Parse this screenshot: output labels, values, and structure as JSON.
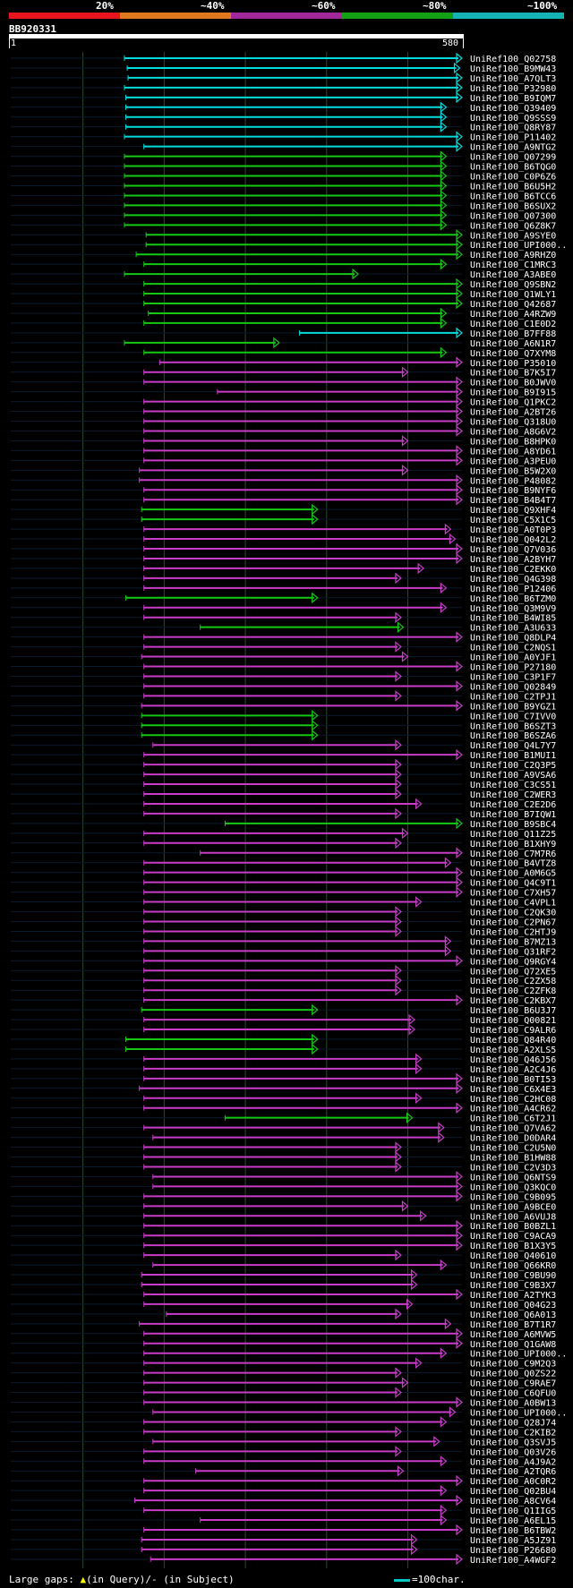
{
  "query": {
    "name": "BB920331",
    "start": "1",
    "end": "580"
  },
  "identity_scale": [
    {
      "label": "20%",
      "color": "#e8141e"
    },
    {
      "label": "~40%",
      "color": "#e0781e"
    },
    {
      "label": "~60%",
      "color": "#a0289a"
    },
    {
      "label": "~80%",
      "color": "#14a014"
    },
    {
      "label": "~100%",
      "color": "#14b4b4"
    }
  ],
  "colors": {
    "cyan": "#00dcdc",
    "green": "#14c814",
    "magenta": "#c83cc8",
    "grid": "#2a4a2a",
    "background": "#000000"
  },
  "footer": {
    "gaps_label": "Large gaps:",
    "gap_query": "(in Query)/",
    "gap_subject": "- (in Subject)",
    "key_label": "=100char."
  },
  "hits": [
    {
      "name": "UniRef100_Q02758",
      "cls": "cyan",
      "s": 0.252,
      "e": 1.0
    },
    {
      "name": "UniRef100_B9MW43",
      "cls": "cyan",
      "s": 0.258,
      "e": 0.995
    },
    {
      "name": "UniRef100_A7QLT3",
      "cls": "cyan",
      "s": 0.26,
      "e": 1.0
    },
    {
      "name": "UniRef100_P32980",
      "cls": "cyan",
      "s": 0.252,
      "e": 1.0
    },
    {
      "name": "UniRef100_B9IQM7",
      "cls": "cyan",
      "s": 0.255,
      "e": 1.0
    },
    {
      "name": "UniRef100_Q39409",
      "cls": "cyan",
      "s": 0.255,
      "e": 0.965
    },
    {
      "name": "UniRef100_Q9SSS9",
      "cls": "cyan",
      "s": 0.255,
      "e": 0.965
    },
    {
      "name": "UniRef100_Q8RY87",
      "cls": "cyan",
      "s": 0.255,
      "e": 0.965
    },
    {
      "name": "UniRef100_P11402",
      "cls": "cyan",
      "s": 0.252,
      "e": 1.0
    },
    {
      "name": "UniRef100_A9NTG2",
      "cls": "cyan",
      "s": 0.295,
      "e": 1.0
    },
    {
      "name": "UniRef100_Q07299",
      "cls": "green",
      "s": 0.252,
      "e": 0.965
    },
    {
      "name": "UniRef100_B6TQG0",
      "cls": "green",
      "s": 0.252,
      "e": 0.965
    },
    {
      "name": "UniRef100_C0P6Z6",
      "cls": "green",
      "s": 0.252,
      "e": 0.965
    },
    {
      "name": "UniRef100_B6U5H2",
      "cls": "green",
      "s": 0.252,
      "e": 0.965
    },
    {
      "name": "UniRef100_B6TCC6",
      "cls": "green",
      "s": 0.252,
      "e": 0.965
    },
    {
      "name": "UniRef100_B6SUX2",
      "cls": "green",
      "s": 0.252,
      "e": 0.965
    },
    {
      "name": "UniRef100_Q07300",
      "cls": "green",
      "s": 0.252,
      "e": 0.965
    },
    {
      "name": "UniRef100_Q6Z8K7",
      "cls": "green",
      "s": 0.252,
      "e": 0.965
    },
    {
      "name": "UniRef100_A9SYE0",
      "cls": "green",
      "s": 0.3,
      "e": 1.0
    },
    {
      "name": "UniRef100_UPI000..",
      "cls": "green",
      "s": 0.3,
      "e": 1.0
    },
    {
      "name": "UniRef100_A9RHZ0",
      "cls": "green",
      "s": 0.278,
      "e": 1.0
    },
    {
      "name": "UniRef100_C1MRC3",
      "cls": "green",
      "s": 0.295,
      "e": 0.965
    },
    {
      "name": "UniRef100_A3ABE0",
      "cls": "green",
      "s": 0.252,
      "e": 0.77
    },
    {
      "name": "UniRef100_Q9SBN2",
      "cls": "green",
      "s": 0.295,
      "e": 1.0
    },
    {
      "name": "UniRef100_Q1WLY1",
      "cls": "green",
      "s": 0.295,
      "e": 1.0
    },
    {
      "name": "UniRef100_Q42687",
      "cls": "green",
      "s": 0.295,
      "e": 1.0
    },
    {
      "name": "UniRef100_A4RZW9",
      "cls": "green",
      "s": 0.305,
      "e": 0.965
    },
    {
      "name": "UniRef100_C1E0D2",
      "cls": "green",
      "s": 0.295,
      "e": 0.965
    },
    {
      "name": "UniRef100_B7FF88",
      "cls": "cyan",
      "s": 0.64,
      "e": 1.0
    },
    {
      "name": "UniRef100_A6N1R7",
      "cls": "green",
      "s": 0.252,
      "e": 0.595
    },
    {
      "name": "UniRef100_Q7XYM8",
      "cls": "green",
      "s": 0.295,
      "e": 0.965
    },
    {
      "name": "UniRef100_P35010",
      "cls": "magenta",
      "s": 0.33,
      "e": 1.0
    },
    {
      "name": "UniRef100_B7K5I7",
      "cls": "magenta",
      "s": 0.295,
      "e": 0.88
    },
    {
      "name": "UniRef100_B0JWV0",
      "cls": "magenta",
      "s": 0.295,
      "e": 1.0
    },
    {
      "name": "UniRef100_B9I915",
      "cls": "magenta",
      "s": 0.458,
      "e": 1.0
    },
    {
      "name": "UniRef100_Q1PKC2",
      "cls": "magenta",
      "s": 0.295,
      "e": 1.0
    },
    {
      "name": "UniRef100_A2BT26",
      "cls": "magenta",
      "s": 0.295,
      "e": 1.0
    },
    {
      "name": "UniRef100_Q318U0",
      "cls": "magenta",
      "s": 0.295,
      "e": 1.0
    },
    {
      "name": "UniRef100_A8G6V2",
      "cls": "magenta",
      "s": 0.295,
      "e": 1.0
    },
    {
      "name": "UniRef100_B8HPK0",
      "cls": "magenta",
      "s": 0.295,
      "e": 0.88
    },
    {
      "name": "UniRef100_A8YD61",
      "cls": "magenta",
      "s": 0.295,
      "e": 1.0
    },
    {
      "name": "UniRef100_A3PEU0",
      "cls": "magenta",
      "s": 0.295,
      "e": 1.0
    },
    {
      "name": "UniRef100_B5W2X0",
      "cls": "magenta",
      "s": 0.285,
      "e": 0.88
    },
    {
      "name": "UniRef100_P48082",
      "cls": "magenta",
      "s": 0.285,
      "e": 1.0
    },
    {
      "name": "UniRef100_B9NYF6",
      "cls": "magenta",
      "s": 0.295,
      "e": 1.0
    },
    {
      "name": "UniRef100_B4B4T7",
      "cls": "magenta",
      "s": 0.295,
      "e": 1.0
    },
    {
      "name": "UniRef100_Q9XHF4",
      "cls": "green",
      "s": 0.29,
      "e": 0.68
    },
    {
      "name": "UniRef100_C5X1C5",
      "cls": "green",
      "s": 0.29,
      "e": 0.68
    },
    {
      "name": "UniRef100_A0T0P3",
      "cls": "magenta",
      "s": 0.295,
      "e": 0.975
    },
    {
      "name": "UniRef100_Q042L2",
      "cls": "magenta",
      "s": 0.295,
      "e": 0.985
    },
    {
      "name": "UniRef100_Q7V036",
      "cls": "magenta",
      "s": 0.295,
      "e": 1.0
    },
    {
      "name": "UniRef100_A2BYH7",
      "cls": "magenta",
      "s": 0.295,
      "e": 1.0
    },
    {
      "name": "UniRef100_C2EKK0",
      "cls": "magenta",
      "s": 0.295,
      "e": 0.915
    },
    {
      "name": "UniRef100_Q4G398",
      "cls": "magenta",
      "s": 0.295,
      "e": 0.865
    },
    {
      "name": "UniRef100_P12406",
      "cls": "magenta",
      "s": 0.295,
      "e": 0.965
    },
    {
      "name": "UniRef100_B6TZM0",
      "cls": "green",
      "s": 0.255,
      "e": 0.68
    },
    {
      "name": "UniRef100_Q3M9V9",
      "cls": "magenta",
      "s": 0.295,
      "e": 0.965
    },
    {
      "name": "UniRef100_B4WI85",
      "cls": "magenta",
      "s": 0.295,
      "e": 0.865
    },
    {
      "name": "UniRef100_A3U633",
      "cls": "green",
      "s": 0.42,
      "e": 0.87
    },
    {
      "name": "UniRef100_Q8DLP4",
      "cls": "magenta",
      "s": 0.295,
      "e": 1.0
    },
    {
      "name": "UniRef100_C2NQS1",
      "cls": "magenta",
      "s": 0.295,
      "e": 0.865
    },
    {
      "name": "UniRef100_A0YJF1",
      "cls": "magenta",
      "s": 0.29,
      "e": 0.88
    },
    {
      "name": "UniRef100_P27180",
      "cls": "magenta",
      "s": 0.295,
      "e": 1.0
    },
    {
      "name": "UniRef100_C3P1F7",
      "cls": "magenta",
      "s": 0.295,
      "e": 0.865
    },
    {
      "name": "UniRef100_Q02849",
      "cls": "magenta",
      "s": 0.295,
      "e": 1.0
    },
    {
      "name": "UniRef100_C2TPJ1",
      "cls": "magenta",
      "s": 0.295,
      "e": 0.865
    },
    {
      "name": "UniRef100_B9YGZ1",
      "cls": "magenta",
      "s": 0.29,
      "e": 1.0
    },
    {
      "name": "UniRef100_C7IVV0",
      "cls": "green",
      "s": 0.29,
      "e": 0.68
    },
    {
      "name": "UniRef100_B6SZT3",
      "cls": "green",
      "s": 0.29,
      "e": 0.68
    },
    {
      "name": "UniRef100_B6SZA6",
      "cls": "green",
      "s": 0.29,
      "e": 0.68
    },
    {
      "name": "UniRef100_Q4L7Y7",
      "cls": "magenta",
      "s": 0.315,
      "e": 0.865
    },
    {
      "name": "UniRef100_B1MUI1",
      "cls": "magenta",
      "s": 0.295,
      "e": 1.0
    },
    {
      "name": "UniRef100_C2Q3P5",
      "cls": "magenta",
      "s": 0.295,
      "e": 0.865
    },
    {
      "name": "UniRef100_A9VSA6",
      "cls": "magenta",
      "s": 0.295,
      "e": 0.865
    },
    {
      "name": "UniRef100_C3CS51",
      "cls": "magenta",
      "s": 0.295,
      "e": 0.865
    },
    {
      "name": "UniRef100_C2WER3",
      "cls": "magenta",
      "s": 0.295,
      "e": 0.865
    },
    {
      "name": "UniRef100_C2E2D6",
      "cls": "magenta",
      "s": 0.295,
      "e": 0.91
    },
    {
      "name": "UniRef100_B7IQW1",
      "cls": "magenta",
      "s": 0.295,
      "e": 0.865
    },
    {
      "name": "UniRef100_B9SBC4",
      "cls": "green",
      "s": 0.475,
      "e": 1.0
    },
    {
      "name": "UniRef100_Q11Z25",
      "cls": "magenta",
      "s": 0.295,
      "e": 0.88
    },
    {
      "name": "UniRef100_B1XHY9",
      "cls": "magenta",
      "s": 0.295,
      "e": 0.865
    },
    {
      "name": "UniRef100_C7M7R6",
      "cls": "magenta",
      "s": 0.42,
      "e": 1.0
    },
    {
      "name": "UniRef100_B4VTZ8",
      "cls": "magenta",
      "s": 0.295,
      "e": 0.975
    },
    {
      "name": "UniRef100_A0M6G5",
      "cls": "magenta",
      "s": 0.295,
      "e": 1.0
    },
    {
      "name": "UniRef100_Q4C9T1",
      "cls": "magenta",
      "s": 0.295,
      "e": 1.0
    },
    {
      "name": "UniRef100_C7XH57",
      "cls": "magenta",
      "s": 0.295,
      "e": 1.0
    },
    {
      "name": "UniRef100_C4VPL1",
      "cls": "magenta",
      "s": 0.295,
      "e": 0.91
    },
    {
      "name": "UniRef100_C2QK30",
      "cls": "magenta",
      "s": 0.295,
      "e": 0.865
    },
    {
      "name": "UniRef100_C2PN67",
      "cls": "magenta",
      "s": 0.295,
      "e": 0.865
    },
    {
      "name": "UniRef100_C2HTJ9",
      "cls": "magenta",
      "s": 0.295,
      "e": 0.865
    },
    {
      "name": "UniRef100_B7MZ13",
      "cls": "magenta",
      "s": 0.295,
      "e": 0.975
    },
    {
      "name": "UniRef100_Q31RF2",
      "cls": "magenta",
      "s": 0.295,
      "e": 0.975
    },
    {
      "name": "UniRef100_Q9RGY4",
      "cls": "magenta",
      "s": 0.295,
      "e": 1.0
    },
    {
      "name": "UniRef100_Q72XE5",
      "cls": "magenta",
      "s": 0.295,
      "e": 0.865
    },
    {
      "name": "UniRef100_C2ZX58",
      "cls": "magenta",
      "s": 0.295,
      "e": 0.865
    },
    {
      "name": "UniRef100_C2ZFK8",
      "cls": "magenta",
      "s": 0.295,
      "e": 0.865
    },
    {
      "name": "UniRef100_C2KBX7",
      "cls": "magenta",
      "s": 0.295,
      "e": 1.0
    },
    {
      "name": "UniRef100_B6U3J7",
      "cls": "green",
      "s": 0.29,
      "e": 0.68
    },
    {
      "name": "UniRef100_Q00821",
      "cls": "magenta",
      "s": 0.295,
      "e": 0.895
    },
    {
      "name": "UniRef100_C9ALR6",
      "cls": "magenta",
      "s": 0.295,
      "e": 0.895
    },
    {
      "name": "UniRef100_Q84R40",
      "cls": "green",
      "s": 0.255,
      "e": 0.68
    },
    {
      "name": "UniRef100_A2XLS5",
      "cls": "green",
      "s": 0.255,
      "e": 0.68
    },
    {
      "name": "UniRef100_Q46J56",
      "cls": "magenta",
      "s": 0.295,
      "e": 0.91
    },
    {
      "name": "UniRef100_A2C4J6",
      "cls": "magenta",
      "s": 0.295,
      "e": 0.91
    },
    {
      "name": "UniRef100_B0TI53",
      "cls": "magenta",
      "s": 0.295,
      "e": 1.0
    },
    {
      "name": "UniRef100_C6X4E3",
      "cls": "magenta",
      "s": 0.285,
      "e": 1.0
    },
    {
      "name": "UniRef100_C2HC08",
      "cls": "magenta",
      "s": 0.295,
      "e": 0.91
    },
    {
      "name": "UniRef100_A4CR62",
      "cls": "magenta",
      "s": 0.295,
      "e": 1.0
    },
    {
      "name": "UniRef100_C6T2J1",
      "cls": "green",
      "s": 0.475,
      "e": 0.89
    },
    {
      "name": "UniRef100_Q7VA62",
      "cls": "magenta",
      "s": 0.295,
      "e": 0.96
    },
    {
      "name": "UniRef100_D0DAR4",
      "cls": "magenta",
      "s": 0.315,
      "e": 0.96
    },
    {
      "name": "UniRef100_C2U5N0",
      "cls": "magenta",
      "s": 0.295,
      "e": 0.865
    },
    {
      "name": "UniRef100_B1HW88",
      "cls": "magenta",
      "s": 0.295,
      "e": 0.865
    },
    {
      "name": "UniRef100_C2V3D3",
      "cls": "magenta",
      "s": 0.295,
      "e": 0.865
    },
    {
      "name": "UniRef100_Q6NTS9",
      "cls": "magenta",
      "s": 0.315,
      "e": 1.0
    },
    {
      "name": "UniRef100_Q3KQC0",
      "cls": "magenta",
      "s": 0.315,
      "e": 1.0
    },
    {
      "name": "UniRef100_C9B095",
      "cls": "magenta",
      "s": 0.295,
      "e": 1.0
    },
    {
      "name": "UniRef100_A9BCE0",
      "cls": "magenta",
      "s": 0.295,
      "e": 0.88
    },
    {
      "name": "UniRef100_A6VUJ8",
      "cls": "magenta",
      "s": 0.295,
      "e": 0.92
    },
    {
      "name": "UniRef100_B0BZL1",
      "cls": "magenta",
      "s": 0.295,
      "e": 1.0
    },
    {
      "name": "UniRef100_C9ACA9",
      "cls": "magenta",
      "s": 0.295,
      "e": 1.0
    },
    {
      "name": "UniRef100_B1X3Y5",
      "cls": "magenta",
      "s": 0.295,
      "e": 1.0
    },
    {
      "name": "UniRef100_Q40610",
      "cls": "magenta",
      "s": 0.295,
      "e": 0.865
    },
    {
      "name": "UniRef100_Q66KR0",
      "cls": "magenta",
      "s": 0.315,
      "e": 0.965
    },
    {
      "name": "UniRef100_C9BU90",
      "cls": "magenta",
      "s": 0.29,
      "e": 0.9
    },
    {
      "name": "UniRef100_C9B3X7",
      "cls": "magenta",
      "s": 0.29,
      "e": 0.9
    },
    {
      "name": "UniRef100_A2TYK3",
      "cls": "magenta",
      "s": 0.295,
      "e": 1.0
    },
    {
      "name": "UniRef100_Q04G23",
      "cls": "magenta",
      "s": 0.295,
      "e": 0.89
    },
    {
      "name": "UniRef100_Q6A013",
      "cls": "magenta",
      "s": 0.345,
      "e": 0.865
    },
    {
      "name": "UniRef100_B7T1R7",
      "cls": "magenta",
      "s": 0.285,
      "e": 0.975
    },
    {
      "name": "UniRef100_A6MVW5",
      "cls": "magenta",
      "s": 0.295,
      "e": 1.0
    },
    {
      "name": "UniRef100_Q1GAW8",
      "cls": "magenta",
      "s": 0.295,
      "e": 1.0
    },
    {
      "name": "UniRef100_UPI000..",
      "cls": "magenta",
      "s": 0.295,
      "e": 0.965
    },
    {
      "name": "UniRef100_C9M2Q3",
      "cls": "magenta",
      "s": 0.295,
      "e": 0.91
    },
    {
      "name": "UniRef100_Q0ZS22",
      "cls": "magenta",
      "s": 0.295,
      "e": 0.865
    },
    {
      "name": "UniRef100_C9RAE7",
      "cls": "magenta",
      "s": 0.295,
      "e": 0.88
    },
    {
      "name": "UniRef100_C6QFU0",
      "cls": "magenta",
      "s": 0.295,
      "e": 0.865
    },
    {
      "name": "UniRef100_A0BW13",
      "cls": "magenta",
      "s": 0.295,
      "e": 1.0
    },
    {
      "name": "UniRef100_UPI000..",
      "cls": "magenta",
      "s": 0.315,
      "e": 0.985
    },
    {
      "name": "UniRef100_Q28J74",
      "cls": "magenta",
      "s": 0.295,
      "e": 0.965
    },
    {
      "name": "UniRef100_C2KIB2",
      "cls": "magenta",
      "s": 0.295,
      "e": 0.865
    },
    {
      "name": "UniRef100_Q3SVJ5",
      "cls": "magenta",
      "s": 0.315,
      "e": 0.95
    },
    {
      "name": "UniRef100_Q03V26",
      "cls": "magenta",
      "s": 0.295,
      "e": 0.865
    },
    {
      "name": "UniRef100_A4J9A2",
      "cls": "magenta",
      "s": 0.295,
      "e": 0.965
    },
    {
      "name": "UniRef100_A2TQR6",
      "cls": "magenta",
      "s": 0.41,
      "e": 0.87
    },
    {
      "name": "UniRef100_A0C0R2",
      "cls": "magenta",
      "s": 0.295,
      "e": 1.0
    },
    {
      "name": "UniRef100_Q02BU4",
      "cls": "magenta",
      "s": 0.295,
      "e": 0.965
    },
    {
      "name": "UniRef100_A8CV64",
      "cls": "magenta",
      "s": 0.275,
      "e": 1.0
    },
    {
      "name": "UniRef100_Q1IIG5",
      "cls": "magenta",
      "s": 0.295,
      "e": 0.965
    },
    {
      "name": "UniRef100_A6EL15",
      "cls": "magenta",
      "s": 0.42,
      "e": 0.965
    },
    {
      "name": "UniRef100_B6TBW2",
      "cls": "magenta",
      "s": 0.295,
      "e": 1.0
    },
    {
      "name": "UniRef100_A5JZ91",
      "cls": "magenta",
      "s": 0.29,
      "e": 0.9
    },
    {
      "name": "UniRef100_P26680",
      "cls": "magenta",
      "s": 0.29,
      "e": 0.9
    },
    {
      "name": "UniRef100_A4WGF2",
      "cls": "magenta",
      "s": 0.31,
      "e": 1.0
    }
  ]
}
